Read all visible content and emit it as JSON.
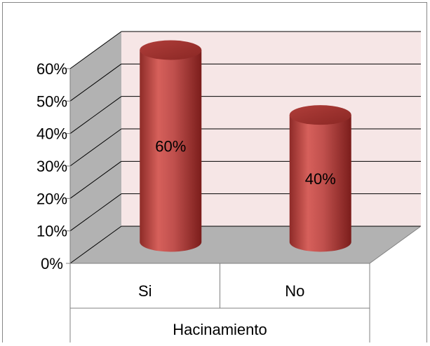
{
  "chart_data": {
    "type": "bar",
    "style": "3d-cylinder",
    "categories": [
      "Si",
      "No"
    ],
    "values": [
      60,
      40
    ],
    "data_labels": [
      "60%",
      "40%"
    ],
    "y_tick_labels": [
      "0%",
      "10%",
      "20%",
      "30%",
      "40%",
      "50%",
      "60%"
    ],
    "ylim": [
      0,
      60
    ],
    "group_label": "Hacinamiento",
    "title": "",
    "xlabel": "",
    "ylabel": "",
    "grid": true,
    "legend": "none",
    "colors": {
      "bar": "#c0504d",
      "bar_dark": "#7b1d1b",
      "bar_light": "#e07a76",
      "back_wall": "#f6e6e6",
      "side_wall": "#b2b2b2",
      "floor": "#b2b2b2",
      "gridline": "#000000",
      "border": "#868686"
    }
  }
}
